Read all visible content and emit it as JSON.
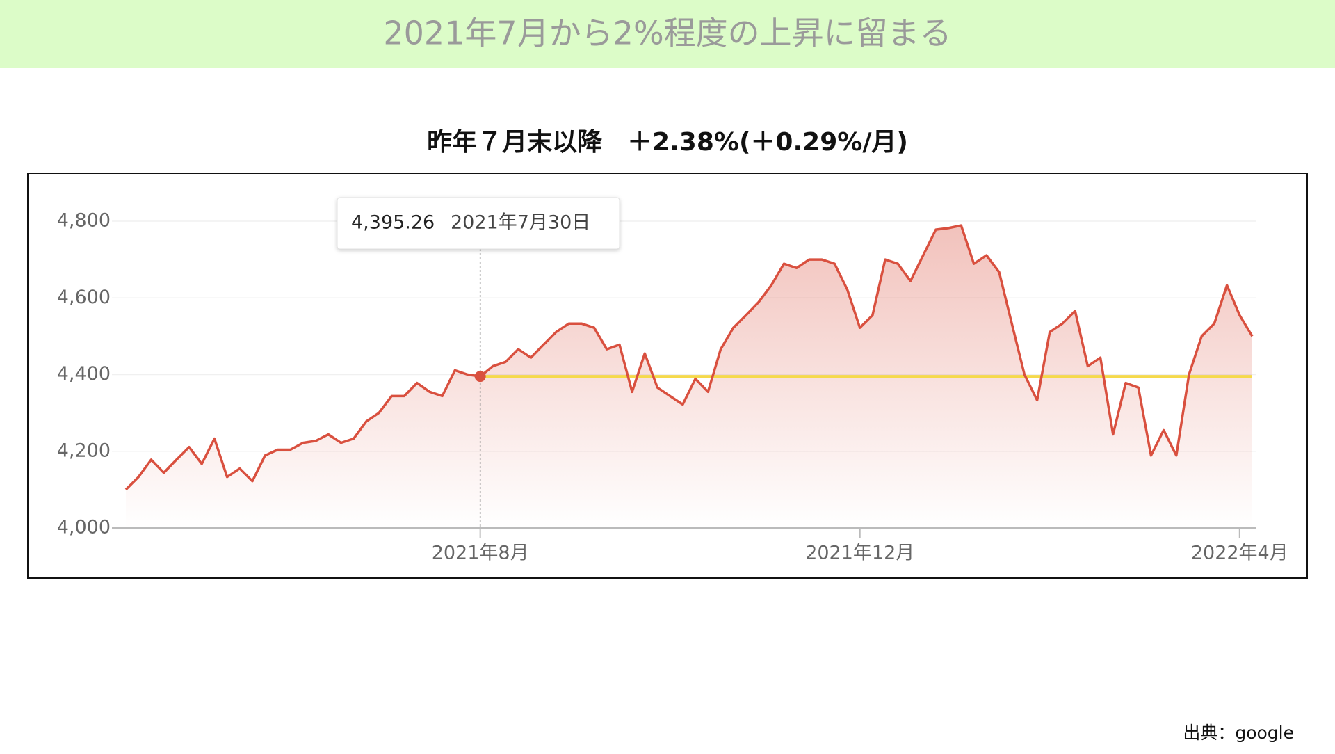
{
  "header": {
    "title": "2021年7月から2%程度の上昇に留まる"
  },
  "chart_data": {
    "type": "line",
    "title": "昨年７月末以降　＋2.38%(＋0.29%/月)",
    "categories": [
      null,
      null,
      null,
      null,
      null,
      null,
      null,
      null,
      null,
      null,
      null,
      null,
      null,
      null,
      null,
      null,
      null,
      null,
      null,
      null,
      null,
      null,
      null,
      null,
      null,
      null,
      null,
      null,
      "2021年8月",
      null,
      null,
      null,
      null,
      null,
      null,
      null,
      null,
      null,
      null,
      null,
      null,
      null,
      null,
      null,
      null,
      null,
      null,
      null,
      null,
      null,
      null,
      null,
      null,
      null,
      null,
      null,
      null,
      null,
      "2021年12月",
      null,
      null,
      null,
      null,
      null,
      null,
      null,
      null,
      null,
      null,
      null,
      null,
      null,
      null,
      null,
      null,
      null,
      null,
      null,
      null,
      null,
      null,
      null,
      null,
      null,
      null,
      null,
      null,
      null,
      "2022年4月",
      null
    ],
    "values": [
      4100,
      4133,
      4178,
      4144,
      4178,
      4211,
      4167,
      4233,
      4133,
      4155,
      4122,
      4189,
      4204,
      4204,
      4222,
      4227,
      4244,
      4222,
      4233,
      4278,
      4300,
      4344,
      4344,
      4378,
      4355,
      4344,
      4411,
      4400,
      4395.26,
      4422,
      4433,
      4466,
      4444,
      4478,
      4511,
      4533,
      4533,
      4522,
      4466,
      4478,
      4355,
      4455,
      4366,
      4344,
      4322,
      4389,
      4355,
      4466,
      4522,
      4555,
      4589,
      4633,
      4689,
      4678,
      4700,
      4700,
      4689,
      4622,
      4522,
      4555,
      4700,
      4689,
      4644,
      4711,
      4778,
      4782,
      4789,
      4689,
      4711,
      4667,
      4533,
      4400,
      4333,
      4511,
      4533,
      4566,
      4422,
      4444,
      4244,
      4378,
      4366,
      4189,
      4255,
      4189,
      4400,
      4500,
      4533,
      4633,
      4555,
      4500
    ],
    "color": "#d9503f",
    "ylim": [
      4000,
      4800
    ],
    "yticks": [
      {
        "value": 4000,
        "label": "4,000"
      },
      {
        "value": 4200,
        "label": "4,200"
      },
      {
        "value": 4400,
        "label": "4,400"
      },
      {
        "value": 4600,
        "label": "4,600"
      },
      {
        "value": 4800,
        "label": "4,800"
      }
    ],
    "grid": true,
    "tooltip": {
      "label": "4,395.26",
      "date": "2021年7月30日"
    }
  },
  "source": "出典：google"
}
